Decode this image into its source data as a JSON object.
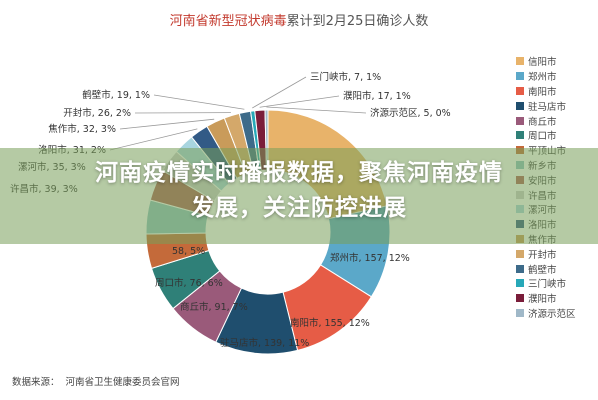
{
  "title": {
    "part1": "河南省新型冠状病毒",
    "part2": "累计到2月25日确诊人数"
  },
  "source": {
    "label": "数据来源：",
    "text": "河南省卫生健康委员会官网"
  },
  "banner": {
    "line1": "河南疫情实时播报数据，聚焦河南疫情",
    "line2": "发展，关注防控进展"
  },
  "chart_data": {
    "type": "pie",
    "style": "donut",
    "title": "河南省新型冠状病毒累计到2月25日确诊人数",
    "categories": [
      "信阳市",
      "郑州市",
      "南阳市",
      "驻马店市",
      "商丘市",
      "周口市",
      "平顶山市",
      "新乡市",
      "安阳市",
      "许昌市",
      "漯河市",
      "洛阳市",
      "焦作市",
      "开封市",
      "鹤壁市",
      "三门峡市",
      "濮阳市",
      "济源示范区"
    ],
    "values": [
      274,
      157,
      155,
      139,
      91,
      76,
      58,
      57,
      53,
      39,
      35,
      31,
      32,
      26,
      19,
      7,
      17,
      5
    ],
    "percent_labels": [
      "",
      "12%",
      "12%",
      "11%",
      "7%",
      "6%",
      "5%",
      "",
      "",
      "3%",
      "3%",
      "2%",
      "3%",
      "2%",
      "1%",
      "1%",
      "1%",
      "0%"
    ],
    "colors": [
      "#e8b36a",
      "#5ba8c9",
      "#e65c46",
      "#1f4e6e",
      "#9a5a7a",
      "#2f8078",
      "#c46a3a",
      "#8ec4c4",
      "#b0625a",
      "#cfcfcf",
      "#a8d5df",
      "#325a86",
      "#c99b5a",
      "#d4a86a",
      "#3d6b8a",
      "#27a8b8",
      "#7a1d3a",
      "#a0b8c8"
    ],
    "legend_position": "right"
  },
  "slice_labels": [
    {
      "index": 1,
      "text": "郑州市, 157, 12%"
    },
    {
      "index": 2,
      "text": "南阳市, 155, 12%"
    },
    {
      "index": 3,
      "text": "驻马店市, 139, 11%"
    },
    {
      "index": 4,
      "text": "商丘市, 91, 7%"
    },
    {
      "index": 5,
      "text": "周口市, 76, 6%"
    },
    {
      "index": 6,
      "text": "58, 5%"
    },
    {
      "index": 9,
      "text": "许昌市, 39, 3%"
    },
    {
      "index": 10,
      "text": "漯河市, 35, 3%"
    },
    {
      "index": 11,
      "text": "洛阳市, 31, 2%"
    },
    {
      "index": 12,
      "text": "焦作市, 32, 3%"
    },
    {
      "index": 13,
      "text": "开封市, 26, 2%"
    },
    {
      "index": 14,
      "text": "鹤壁市, 19, 1%"
    },
    {
      "index": 15,
      "text": "三门峡市, 7, 1%"
    },
    {
      "index": 16,
      "text": "濮阳市, 17, 1%"
    },
    {
      "index": 17,
      "text": "济源示范区, 5, 0%"
    }
  ]
}
